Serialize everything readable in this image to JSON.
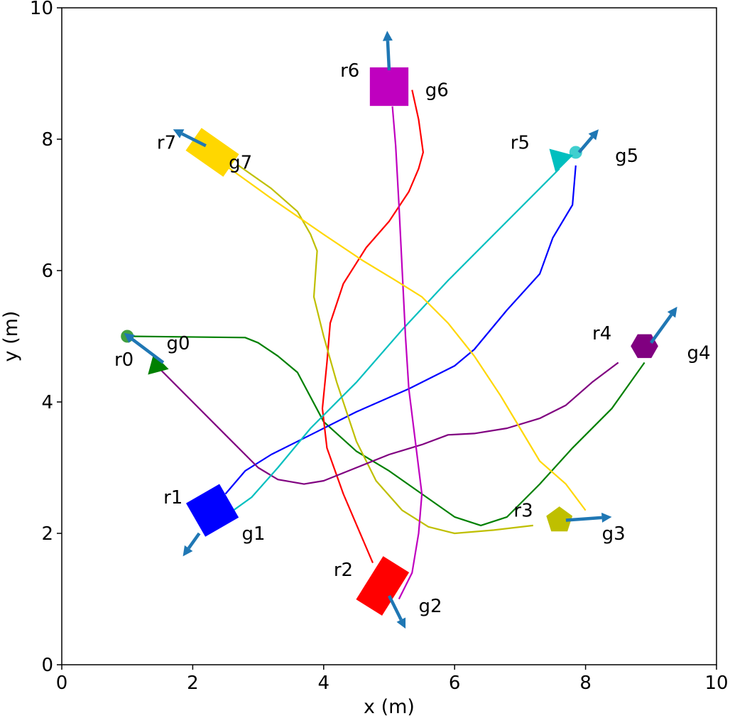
{
  "chart_data": {
    "type": "scatter",
    "title": "",
    "xlabel": "x (m)",
    "ylabel": "y (m)",
    "xlim": [
      0,
      10
    ],
    "ylim": [
      0,
      10
    ],
    "xticks": [
      "0",
      "2",
      "4",
      "6",
      "8",
      "10"
    ],
    "yticks": [
      "0",
      "2",
      "4",
      "6",
      "8",
      "10"
    ],
    "grid": false,
    "arrow_color": "#1f77b4",
    "robots": [
      {
        "label": "r0",
        "goal_label": "g0",
        "color": "#008000",
        "shape": "triangle",
        "shape_size": 0.33,
        "orientation_deg": -15,
        "position": [
          1.45,
          4.55
        ],
        "start_dot": [
          1.0,
          5.0
        ],
        "arrow": {
          "from": [
            1.55,
            4.6
          ],
          "to": [
            0.95,
            5.05
          ]
        },
        "label_pos": [
          0.95,
          4.65
        ],
        "goal_label_pos": [
          1.6,
          4.9
        ],
        "path": [
          [
            1.0,
            5.0
          ],
          [
            2.8,
            4.98
          ],
          [
            3.0,
            4.9
          ],
          [
            3.3,
            4.7
          ],
          [
            3.6,
            4.45
          ],
          [
            4.0,
            3.7
          ],
          [
            4.5,
            3.25
          ],
          [
            5.0,
            2.95
          ],
          [
            5.5,
            2.6
          ],
          [
            6.0,
            2.25
          ],
          [
            6.4,
            2.12
          ],
          [
            6.8,
            2.25
          ],
          [
            7.3,
            2.75
          ],
          [
            7.8,
            3.3
          ],
          [
            8.4,
            3.9
          ],
          [
            8.9,
            4.6
          ]
        ]
      },
      {
        "label": "r1",
        "goal_label": "g1",
        "color": "#0000ff",
        "shape": "square",
        "shape_size": 0.62,
        "orientation_deg": 30,
        "position": [
          2.3,
          2.35
        ],
        "start_dot": null,
        "arrow": {
          "from": [
            2.1,
            2.0
          ],
          "to": [
            1.85,
            1.65
          ]
        },
        "label_pos": [
          1.7,
          2.55
        ],
        "goal_label_pos": [
          2.75,
          2.0
        ],
        "path": [
          [
            2.5,
            2.6
          ],
          [
            2.8,
            2.95
          ],
          [
            3.2,
            3.2
          ],
          [
            3.8,
            3.5
          ],
          [
            4.5,
            3.85
          ],
          [
            5.3,
            4.2
          ],
          [
            6.0,
            4.55
          ],
          [
            6.3,
            4.8
          ],
          [
            6.8,
            5.4
          ],
          [
            7.3,
            5.95
          ],
          [
            7.5,
            6.5
          ],
          [
            7.8,
            7.0
          ],
          [
            7.85,
            7.6
          ]
        ]
      },
      {
        "label": "r2",
        "goal_label": "g2",
        "color": "#ff0000",
        "shape": "rectangle",
        "shape_size": 0.78,
        "orientation_deg": 58,
        "position": [
          4.9,
          1.2
        ],
        "start_dot": null,
        "arrow": {
          "from": [
            5.0,
            1.05
          ],
          "to": [
            5.25,
            0.55
          ]
        },
        "label_pos": [
          4.3,
          1.45
        ],
        "goal_label_pos": [
          5.45,
          0.9
        ],
        "path": [
          [
            4.75,
            1.55
          ],
          [
            4.3,
            2.6
          ],
          [
            4.05,
            3.3
          ],
          [
            3.98,
            3.9
          ],
          [
            4.05,
            4.6
          ],
          [
            4.1,
            5.2
          ],
          [
            4.3,
            5.8
          ],
          [
            4.65,
            6.35
          ],
          [
            5.0,
            6.75
          ],
          [
            5.3,
            7.2
          ],
          [
            5.45,
            7.55
          ],
          [
            5.52,
            7.8
          ],
          [
            5.45,
            8.3
          ],
          [
            5.35,
            8.75
          ]
        ]
      },
      {
        "label": "r3",
        "goal_label": "g3",
        "color": "#bfbf00",
        "shape": "pentagon",
        "shape_size": 0.42,
        "orientation_deg": 0,
        "position": [
          7.6,
          2.2
        ],
        "start_dot": null,
        "arrow": {
          "from": [
            7.7,
            2.2
          ],
          "to": [
            8.4,
            2.25
          ]
        },
        "label_pos": [
          7.05,
          2.35
        ],
        "goal_label_pos": [
          8.25,
          2.0
        ],
        "path": [
          [
            2.7,
            7.6
          ],
          [
            3.2,
            7.25
          ],
          [
            3.6,
            6.9
          ],
          [
            3.8,
            6.55
          ],
          [
            3.9,
            6.3
          ],
          [
            3.85,
            5.6
          ],
          [
            4.0,
            5.0
          ],
          [
            4.2,
            4.3
          ],
          [
            4.5,
            3.4
          ],
          [
            4.8,
            2.8
          ],
          [
            5.2,
            2.35
          ],
          [
            5.6,
            2.1
          ],
          [
            6.0,
            2.0
          ],
          [
            6.6,
            2.05
          ],
          [
            7.2,
            2.12
          ]
        ]
      },
      {
        "label": "r4",
        "goal_label": "g4",
        "color": "#800080",
        "shape": "hexagon",
        "shape_size": 0.42,
        "orientation_deg": 0,
        "position": [
          8.9,
          4.85
        ],
        "start_dot": null,
        "arrow": {
          "from": [
            9.0,
            4.9
          ],
          "to": [
            9.4,
            5.45
          ]
        },
        "label_pos": [
          8.25,
          5.05
        ],
        "goal_label_pos": [
          9.55,
          4.75
        ],
        "path": [
          [
            1.45,
            4.55
          ],
          [
            2.0,
            4.0
          ],
          [
            2.5,
            3.5
          ],
          [
            3.0,
            3.0
          ],
          [
            3.3,
            2.82
          ],
          [
            3.7,
            2.75
          ],
          [
            4.0,
            2.8
          ],
          [
            4.5,
            3.0
          ],
          [
            5.0,
            3.2
          ],
          [
            5.5,
            3.35
          ],
          [
            5.9,
            3.5
          ],
          [
            6.3,
            3.52
          ],
          [
            6.8,
            3.6
          ],
          [
            7.3,
            3.75
          ],
          [
            7.7,
            3.95
          ],
          [
            8.1,
            4.3
          ],
          [
            8.5,
            4.6
          ]
        ]
      },
      {
        "label": "r5",
        "goal_label": "g5",
        "color": "#00bfbf",
        "shape": "triangle",
        "shape_size": 0.38,
        "orientation_deg": 15,
        "position": [
          7.6,
          7.7
        ],
        "start_dot": [
          7.85,
          7.8
        ],
        "arrow": {
          "from": [
            7.9,
            7.8
          ],
          "to": [
            8.2,
            8.15
          ]
        },
        "label_pos": [
          7.0,
          7.95
        ],
        "goal_label_pos": [
          8.45,
          7.75
        ],
        "path": [
          [
            2.55,
            2.3
          ],
          [
            2.9,
            2.55
          ],
          [
            3.3,
            3.0
          ],
          [
            3.8,
            3.6
          ],
          [
            4.5,
            4.3
          ],
          [
            5.2,
            5.1
          ],
          [
            5.9,
            5.85
          ],
          [
            6.6,
            6.55
          ],
          [
            7.3,
            7.25
          ],
          [
            7.6,
            7.55
          ]
        ]
      },
      {
        "label": "r6",
        "goal_label": "g6",
        "color": "#bf00bf",
        "shape": "square",
        "shape_size": 0.62,
        "orientation_deg": 0,
        "position": [
          5.0,
          8.8
        ],
        "start_dot": null,
        "arrow": {
          "from": [
            5.0,
            9.05
          ],
          "to": [
            4.97,
            9.65
          ]
        },
        "label_pos": [
          4.4,
          9.05
        ],
        "goal_label_pos": [
          5.55,
          8.75
        ],
        "path": [
          [
            5.15,
            1.0
          ],
          [
            5.35,
            1.4
          ],
          [
            5.45,
            2.0
          ],
          [
            5.5,
            2.6
          ],
          [
            5.4,
            3.4
          ],
          [
            5.3,
            4.2
          ],
          [
            5.25,
            5.0
          ],
          [
            5.2,
            6.0
          ],
          [
            5.15,
            7.0
          ],
          [
            5.1,
            7.9
          ],
          [
            5.05,
            8.5
          ]
        ]
      },
      {
        "label": "r7",
        "goal_label": "g7",
        "color": "#ffd700",
        "shape": "rectangle",
        "shape_size": 0.7,
        "orientation_deg": -35,
        "position": [
          2.3,
          7.8
        ],
        "start_dot": null,
        "arrow": {
          "from": [
            2.2,
            7.9
          ],
          "to": [
            1.7,
            8.15
          ]
        },
        "label_pos": [
          1.6,
          7.95
        ],
        "goal_label_pos": [
          2.55,
          7.65
        ],
        "path": [
          [
            2.5,
            7.6
          ],
          [
            3.2,
            7.1
          ],
          [
            4.0,
            6.55
          ],
          [
            4.6,
            6.15
          ],
          [
            5.1,
            5.85
          ],
          [
            5.5,
            5.6
          ],
          [
            5.9,
            5.2
          ],
          [
            6.3,
            4.7
          ],
          [
            6.7,
            4.1
          ],
          [
            7.0,
            3.6
          ],
          [
            7.3,
            3.1
          ],
          [
            7.7,
            2.75
          ],
          [
            8.0,
            2.35
          ]
        ]
      }
    ]
  }
}
